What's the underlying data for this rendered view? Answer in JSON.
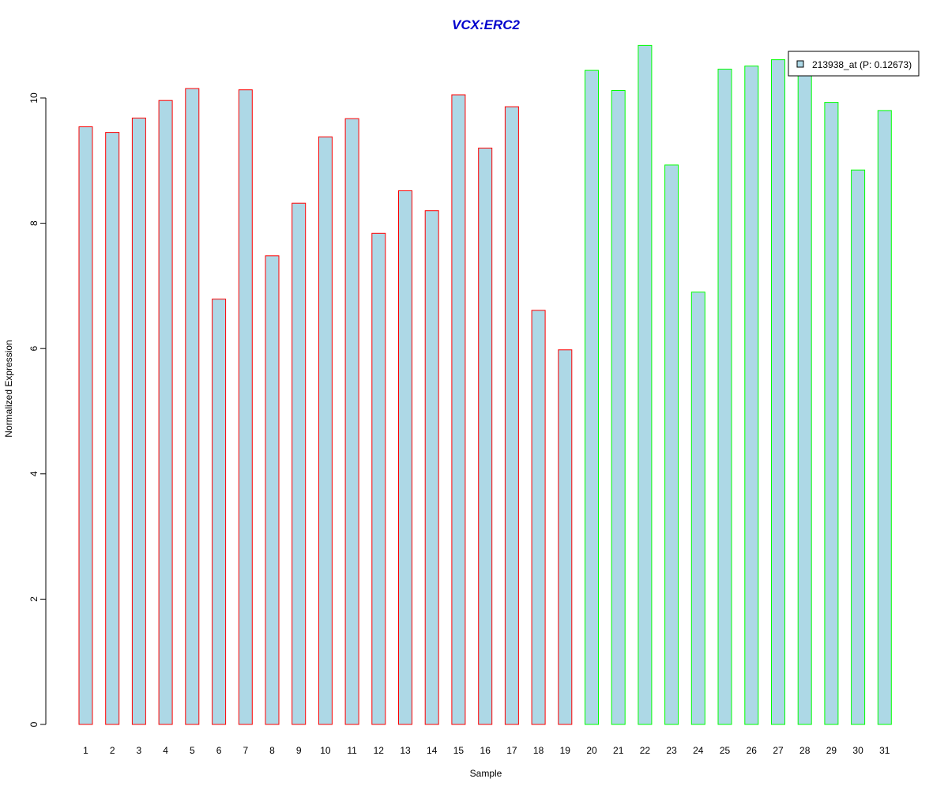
{
  "chart_data": {
    "type": "bar",
    "title": "VCX:ERC2",
    "xlabel": "Sample",
    "ylabel": "Normalized Expression",
    "ylim": [
      0,
      11
    ],
    "yticks": [
      "0",
      "2",
      "4",
      "6",
      "8",
      "10"
    ],
    "categories": [
      "1",
      "2",
      "3",
      "4",
      "5",
      "6",
      "7",
      "8",
      "9",
      "10",
      "11",
      "12",
      "13",
      "14",
      "15",
      "16",
      "17",
      "18",
      "19",
      "20",
      "21",
      "22",
      "23",
      "24",
      "25",
      "26",
      "27",
      "28",
      "29",
      "30",
      "31"
    ],
    "series": [
      {
        "name": "213938_at (P: 0.12673)",
        "values": [
          9.54,
          9.45,
          9.68,
          9.96,
          10.15,
          6.79,
          10.13,
          7.48,
          8.32,
          9.38,
          9.67,
          7.84,
          8.52,
          8.2,
          10.05,
          9.2,
          9.86,
          6.61,
          5.98,
          10.44,
          10.12,
          10.84,
          8.93,
          6.9,
          10.46,
          10.51,
          10.61,
          10.4,
          9.93,
          8.85,
          9.8
        ]
      }
    ],
    "bar_fill": "#add8e6",
    "group_colors": {
      "group1": "#ff0000",
      "group2": "#00ff00"
    },
    "group1_count": 19,
    "title_color": "#0000cd",
    "legend_position": "top-right",
    "legend_swatch": "#add8e6",
    "grid": false
  }
}
